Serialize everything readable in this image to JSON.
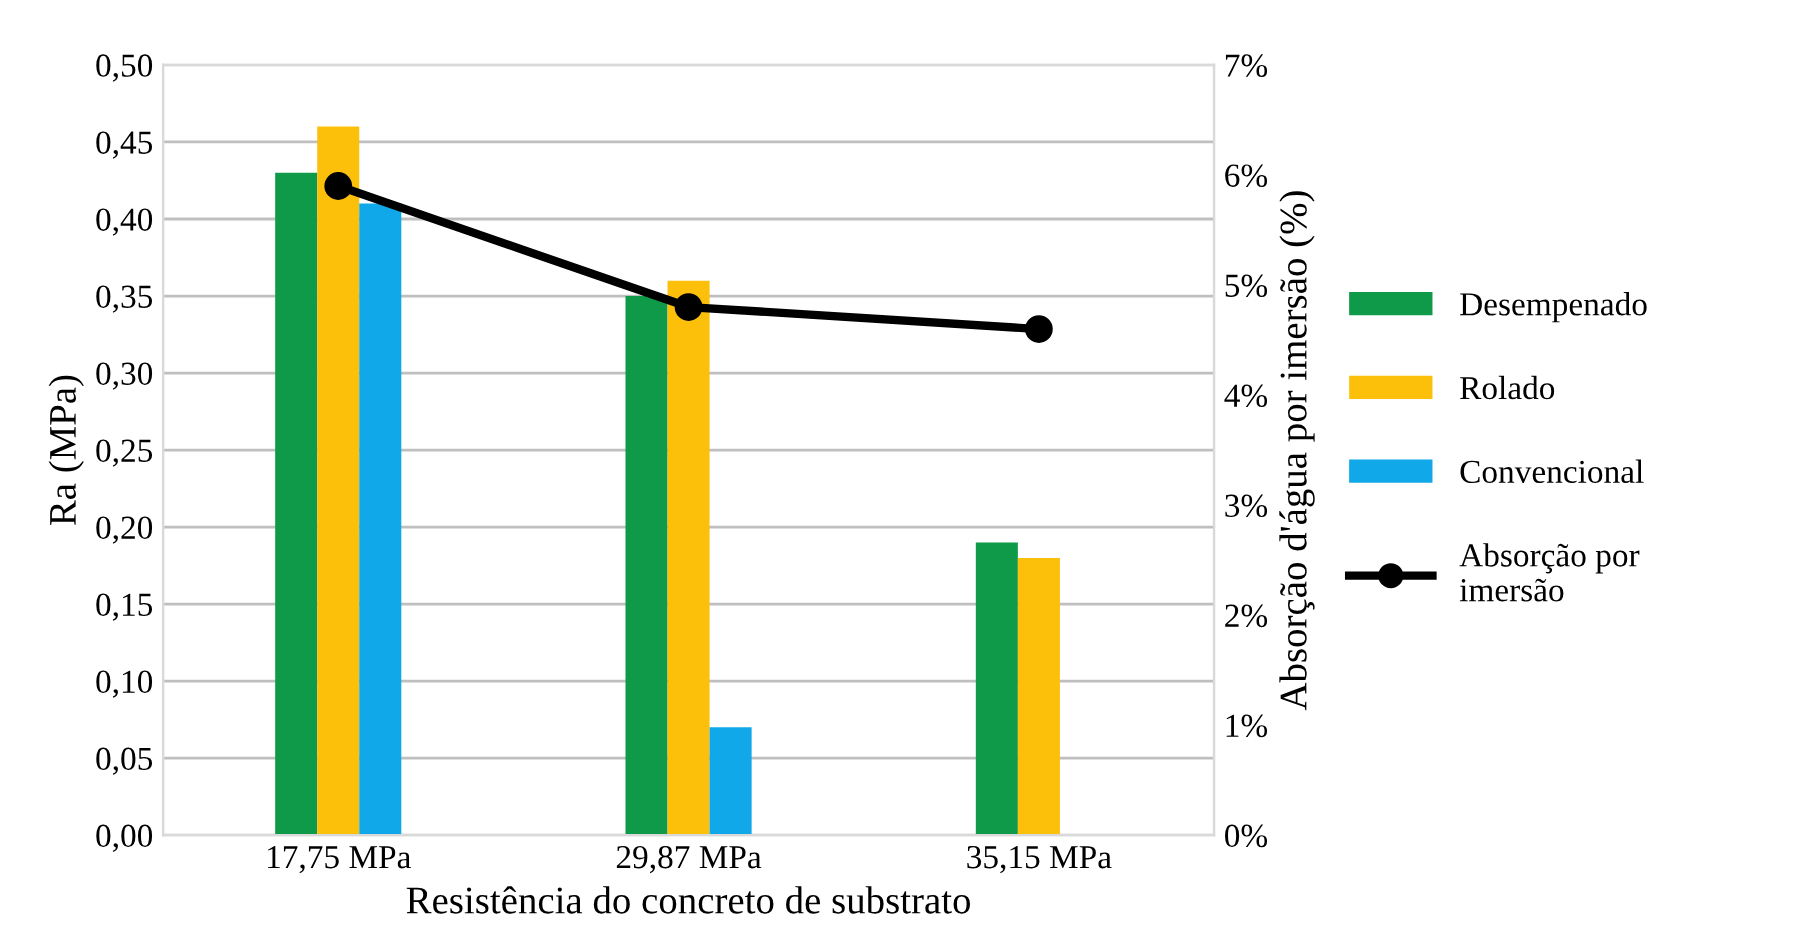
{
  "chart_data": {
    "type": "bar",
    "xlabel": "Resistência do concreto de substrato",
    "ylabel": "Ra (MPa)",
    "y2label": "Absorção d'água por imersão (%)",
    "categories": [
      "17,75 MPa",
      "29,87 MPa",
      "35,15 MPa"
    ],
    "series": [
      {
        "name": "Desempenado",
        "color": "#0e9a48",
        "values": [
          0.43,
          0.35,
          0.19
        ]
      },
      {
        "name": "Rolado",
        "color": "#fcc00a",
        "values": [
          0.46,
          0.36,
          0.18
        ]
      },
      {
        "name": "Convencional",
        "color": "#10a8e8",
        "values": [
          0.41,
          0.07,
          null
        ]
      },
      {
        "name": "Absorção por\nimersão",
        "type": "line",
        "axis": "y2",
        "color": "#000000",
        "marker": "circle",
        "values": [
          5.9,
          4.8,
          4.6
        ]
      }
    ],
    "ylim": [
      0,
      0.5
    ],
    "yticks": [
      {
        "value": 0,
        "label": "0,00"
      },
      {
        "value": 0.05,
        "label": "0,05"
      },
      {
        "value": 0.1,
        "label": "0,10"
      },
      {
        "value": 0.15,
        "label": "0,15"
      },
      {
        "value": 0.2,
        "label": "0,20"
      },
      {
        "value": 0.25,
        "label": "0,25"
      },
      {
        "value": 0.3,
        "label": "0,30"
      },
      {
        "value": 0.35,
        "label": "0,35"
      },
      {
        "value": 0.4,
        "label": "0,40"
      },
      {
        "value": 0.45,
        "label": "0,45"
      },
      {
        "value": 0.5,
        "label": "0,50"
      }
    ],
    "y2lim": [
      0,
      7
    ],
    "y2ticks": [
      {
        "value": 0,
        "label": "0%"
      },
      {
        "value": 1,
        "label": "1%"
      },
      {
        "value": 2,
        "label": "2%"
      },
      {
        "value": 3,
        "label": "3%"
      },
      {
        "value": 4,
        "label": "4%"
      },
      {
        "value": 5,
        "label": "5%"
      },
      {
        "value": 6,
        "label": "6%"
      },
      {
        "value": 7,
        "label": "7%"
      }
    ],
    "grid": "y",
    "legend": "right"
  }
}
